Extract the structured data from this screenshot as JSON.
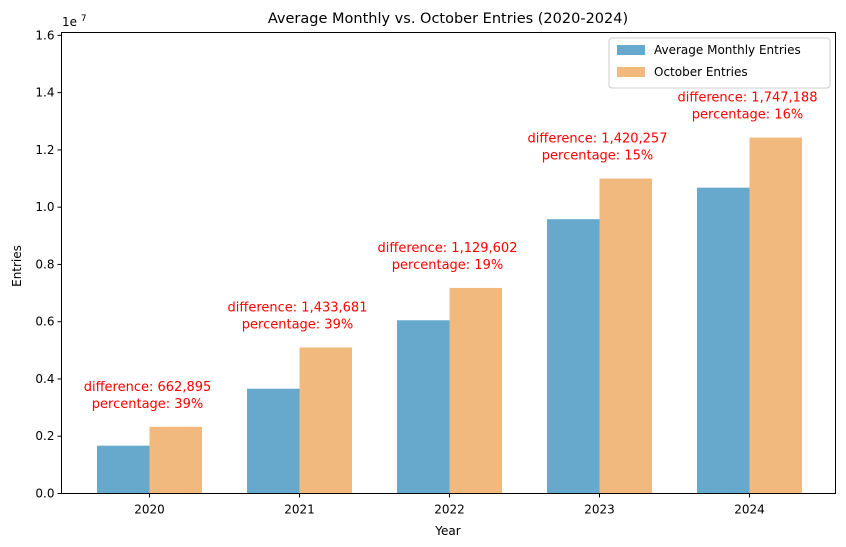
{
  "chart_data": {
    "type": "bar",
    "title": "Average Monthly vs. October Entries (2020-2024)",
    "xlabel": "Year",
    "ylabel": "Entries",
    "y_offset_text": "1e7",
    "ylim": [
      0,
      16100000
    ],
    "y_ticks": [
      0,
      2000000,
      4000000,
      6000000,
      8000000,
      10000000,
      12000000,
      14000000,
      16000000
    ],
    "y_tick_labels": [
      "0.0",
      "0.2",
      "0.4",
      "0.6",
      "0.8",
      "1.0",
      "1.2",
      "1.4",
      "1.6"
    ],
    "grid": false,
    "legend_placement": "top-right",
    "categories": [
      "2020",
      "2021",
      "2022",
      "2023",
      "2024"
    ],
    "series": [
      {
        "name": "Average Monthly Entries",
        "color": "#67a8cd",
        "values": [
          1670000,
          3660000,
          6050000,
          9580000,
          10680000
        ]
      },
      {
        "name": "October Entries",
        "color": "#f1b97e",
        "values": [
          2330000,
          5100000,
          7180000,
          11000000,
          12430000
        ]
      }
    ],
    "annotations": [
      {
        "difference": "difference: 662,895",
        "percentage": "percentage: 39%"
      },
      {
        "difference": "difference: 1,433,681",
        "percentage": "percentage: 39%"
      },
      {
        "difference": "difference: 1,129,602",
        "percentage": "percentage: 19%"
      },
      {
        "difference": "difference: 1,420,257",
        "percentage": "percentage: 15%"
      },
      {
        "difference": "difference: 1,747,188",
        "percentage": "percentage: 16%"
      }
    ],
    "annotation_color": "#ff0000"
  }
}
